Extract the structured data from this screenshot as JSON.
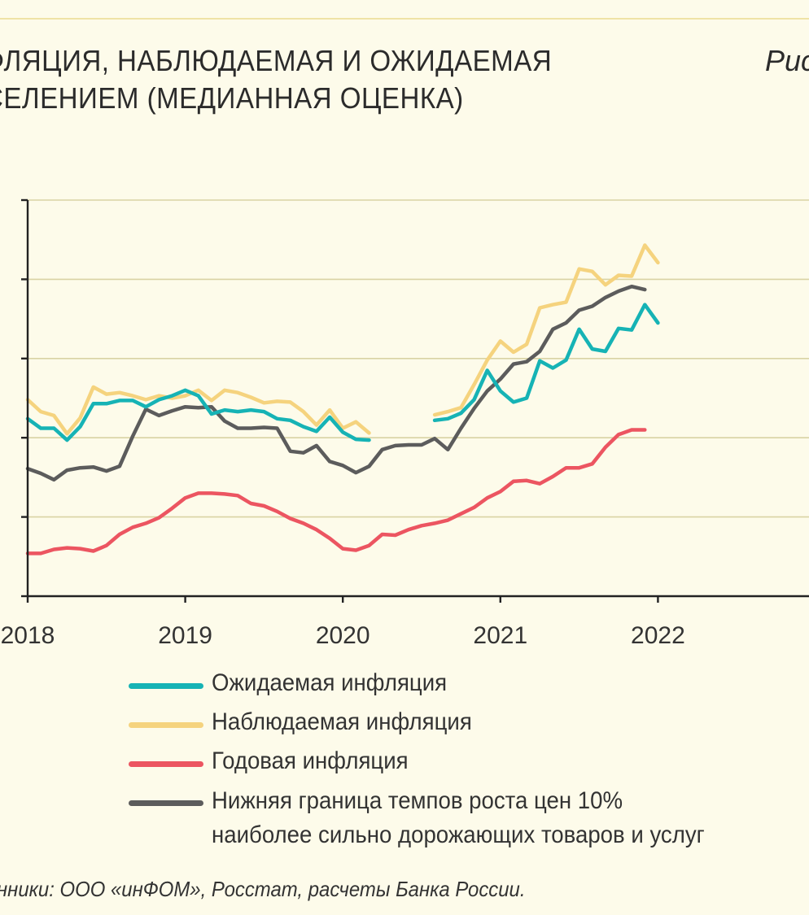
{
  "page": {
    "title_line1": "ФЛЯЦИЯ, НАБЛЮДАЕМАЯ И ОЖИДАЕМАЯ",
    "title_line2": "СЕЛЕНИЕМ (МЕДИАННАЯ ОЦЕНКА)",
    "figure_label": "Рис",
    "source": "нники: ООО «инФОМ», Росстат, расчеты Банка России."
  },
  "colors": {
    "background": "#fdfbea",
    "grid": "#d9d3a4",
    "axis": "#222222",
    "expected": "#16b3b5",
    "observed": "#f5d37e",
    "annual": "#ec5561",
    "lower_bound": "#5c5c5c"
  },
  "chart_data": {
    "type": "line",
    "title": "ФЛЯЦИЯ, НАБЛЮДАЕМАЯ И ОЖИДАЕМАЯ СЕЛЕНИЕМ (МЕДИАННАЯ ОЦЕНКА)",
    "xlabel": "",
    "ylabel": "",
    "x_ticks": [
      "2018",
      "2019",
      "2020",
      "2021",
      "2022"
    ],
    "xlim": [
      2018,
      2023
    ],
    "ylim": [
      0,
      5
    ],
    "grid": true,
    "y_tick_labels_visible": false,
    "legend_placement": "bottom",
    "series": [
      {
        "name": "Ожидаемая инфляция",
        "color": "#16b3b5",
        "points": [
          [
            2018.0,
            2.24
          ],
          [
            2018.083,
            2.12
          ],
          [
            2018.167,
            2.12
          ],
          [
            2018.25,
            1.97
          ],
          [
            2018.333,
            2.14
          ],
          [
            2018.417,
            2.43
          ],
          [
            2018.5,
            2.43
          ],
          [
            2018.583,
            2.47
          ],
          [
            2018.667,
            2.47
          ],
          [
            2018.75,
            2.39
          ],
          [
            2018.833,
            2.48
          ],
          [
            2018.917,
            2.53
          ],
          [
            2019.0,
            2.6
          ],
          [
            2019.083,
            2.53
          ],
          [
            2019.167,
            2.3
          ],
          [
            2019.25,
            2.35
          ],
          [
            2019.333,
            2.33
          ],
          [
            2019.417,
            2.35
          ],
          [
            2019.5,
            2.33
          ],
          [
            2019.583,
            2.24
          ],
          [
            2019.667,
            2.22
          ],
          [
            2019.75,
            2.14
          ],
          [
            2019.833,
            2.08
          ],
          [
            2019.917,
            2.26
          ],
          [
            2020.0,
            2.07
          ],
          [
            2020.083,
            1.98
          ],
          [
            2020.167,
            1.97
          ],
          null,
          [
            2020.583,
            2.22
          ],
          [
            2020.667,
            2.24
          ],
          [
            2020.75,
            2.31
          ],
          [
            2020.833,
            2.48
          ],
          [
            2020.917,
            2.85
          ],
          [
            2021.0,
            2.59
          ],
          [
            2021.083,
            2.45
          ],
          [
            2021.167,
            2.5
          ],
          [
            2021.25,
            2.97
          ],
          [
            2021.333,
            2.88
          ],
          [
            2021.417,
            2.98
          ],
          [
            2021.5,
            3.37
          ],
          [
            2021.583,
            3.12
          ],
          [
            2021.667,
            3.09
          ],
          [
            2021.75,
            3.38
          ],
          [
            2021.833,
            3.36
          ],
          [
            2021.917,
            3.68
          ],
          [
            2022.0,
            3.45
          ]
        ]
      },
      {
        "name": "Наблюдаемая  инфляция",
        "color": "#f5d37e",
        "points": [
          [
            2018.0,
            2.48
          ],
          [
            2018.083,
            2.33
          ],
          [
            2018.167,
            2.28
          ],
          [
            2018.25,
            2.05
          ],
          [
            2018.333,
            2.25
          ],
          [
            2018.417,
            2.64
          ],
          [
            2018.5,
            2.55
          ],
          [
            2018.583,
            2.57
          ],
          [
            2018.667,
            2.53
          ],
          [
            2018.75,
            2.48
          ],
          [
            2018.833,
            2.53
          ],
          [
            2018.917,
            2.5
          ],
          [
            2019.0,
            2.53
          ],
          [
            2019.083,
            2.6
          ],
          [
            2019.167,
            2.47
          ],
          [
            2019.25,
            2.6
          ],
          [
            2019.333,
            2.57
          ],
          [
            2019.417,
            2.51
          ],
          [
            2019.5,
            2.44
          ],
          [
            2019.583,
            2.46
          ],
          [
            2019.667,
            2.45
          ],
          [
            2019.75,
            2.33
          ],
          [
            2019.833,
            2.16
          ],
          [
            2019.917,
            2.35
          ],
          [
            2020.0,
            2.12
          ],
          [
            2020.083,
            2.2
          ],
          [
            2020.167,
            2.06
          ],
          null,
          [
            2020.583,
            2.29
          ],
          [
            2020.667,
            2.33
          ],
          [
            2020.75,
            2.38
          ],
          [
            2020.833,
            2.67
          ],
          [
            2020.917,
            2.98
          ],
          [
            2021.0,
            3.22
          ],
          [
            2021.083,
            3.08
          ],
          [
            2021.167,
            3.18
          ],
          [
            2021.25,
            3.64
          ],
          [
            2021.333,
            3.68
          ],
          [
            2021.417,
            3.71
          ],
          [
            2021.5,
            4.13
          ],
          [
            2021.583,
            4.1
          ],
          [
            2021.667,
            3.93
          ],
          [
            2021.75,
            4.05
          ],
          [
            2021.833,
            4.04
          ],
          [
            2021.917,
            4.43
          ],
          [
            2022.0,
            4.21
          ]
        ]
      },
      {
        "name": "Годовая инфляция",
        "color": "#ec5561",
        "points": [
          [
            2018.0,
            0.54
          ],
          [
            2018.083,
            0.54
          ],
          [
            2018.167,
            0.59
          ],
          [
            2018.25,
            0.61
          ],
          [
            2018.333,
            0.6
          ],
          [
            2018.417,
            0.57
          ],
          [
            2018.5,
            0.64
          ],
          [
            2018.583,
            0.78
          ],
          [
            2018.667,
            0.87
          ],
          [
            2018.75,
            0.92
          ],
          [
            2018.833,
            0.99
          ],
          [
            2018.917,
            1.11
          ],
          [
            2019.0,
            1.24
          ],
          [
            2019.083,
            1.3
          ],
          [
            2019.167,
            1.3
          ],
          [
            2019.25,
            1.29
          ],
          [
            2019.333,
            1.27
          ],
          [
            2019.417,
            1.17
          ],
          [
            2019.5,
            1.14
          ],
          [
            2019.583,
            1.07
          ],
          [
            2019.667,
            0.98
          ],
          [
            2019.75,
            0.92
          ],
          [
            2019.833,
            0.84
          ],
          [
            2019.917,
            0.73
          ],
          [
            2020.0,
            0.6
          ],
          [
            2020.083,
            0.58
          ],
          [
            2020.167,
            0.64
          ],
          [
            2020.25,
            0.78
          ],
          [
            2020.333,
            0.77
          ],
          [
            2020.417,
            0.84
          ],
          [
            2020.5,
            0.89
          ],
          [
            2020.583,
            0.92
          ],
          [
            2020.667,
            0.96
          ],
          [
            2020.75,
            1.04
          ],
          [
            2020.833,
            1.12
          ],
          [
            2020.917,
            1.24
          ],
          [
            2021.0,
            1.32
          ],
          [
            2021.083,
            1.45
          ],
          [
            2021.167,
            1.46
          ],
          [
            2021.25,
            1.42
          ],
          [
            2021.333,
            1.51
          ],
          [
            2021.417,
            1.62
          ],
          [
            2021.5,
            1.62
          ],
          [
            2021.583,
            1.67
          ],
          [
            2021.667,
            1.88
          ],
          [
            2021.75,
            2.04
          ],
          [
            2021.833,
            2.1
          ],
          [
            2021.917,
            2.1
          ]
        ]
      },
      {
        "name": "Нижняя граница темпов роста цен 10%",
        "name_line2": "наиболее сильно дорожающих товаров и услуг",
        "color": "#5c5c5c",
        "points": [
          [
            2018.0,
            1.61
          ],
          [
            2018.083,
            1.55
          ],
          [
            2018.167,
            1.47
          ],
          [
            2018.25,
            1.59
          ],
          [
            2018.333,
            1.62
          ],
          [
            2018.417,
            1.63
          ],
          [
            2018.5,
            1.58
          ],
          [
            2018.583,
            1.64
          ],
          [
            2018.667,
            2.02
          ],
          [
            2018.75,
            2.36
          ],
          [
            2018.833,
            2.28
          ],
          [
            2018.917,
            2.34
          ],
          [
            2019.0,
            2.39
          ],
          [
            2019.083,
            2.38
          ],
          [
            2019.167,
            2.39
          ],
          [
            2019.25,
            2.21
          ],
          [
            2019.333,
            2.12
          ],
          [
            2019.417,
            2.12
          ],
          [
            2019.5,
            2.13
          ],
          [
            2019.583,
            2.12
          ],
          [
            2019.667,
            1.83
          ],
          [
            2019.75,
            1.81
          ],
          [
            2019.833,
            1.9
          ],
          [
            2019.917,
            1.7
          ],
          [
            2020.0,
            1.65
          ],
          [
            2020.083,
            1.56
          ],
          [
            2020.167,
            1.64
          ],
          [
            2020.25,
            1.85
          ],
          [
            2020.333,
            1.9
          ],
          [
            2020.417,
            1.91
          ],
          [
            2020.5,
            1.91
          ],
          [
            2020.583,
            1.99
          ],
          [
            2020.667,
            1.85
          ],
          [
            2020.75,
            2.12
          ],
          [
            2020.833,
            2.37
          ],
          [
            2020.917,
            2.59
          ],
          [
            2021.0,
            2.74
          ],
          [
            2021.083,
            2.93
          ],
          [
            2021.167,
            2.96
          ],
          [
            2021.25,
            3.09
          ],
          [
            2021.333,
            3.37
          ],
          [
            2021.417,
            3.45
          ],
          [
            2021.5,
            3.61
          ],
          [
            2021.583,
            3.66
          ],
          [
            2021.667,
            3.77
          ],
          [
            2021.75,
            3.85
          ],
          [
            2021.833,
            3.91
          ],
          [
            2021.917,
            3.87
          ]
        ]
      }
    ]
  }
}
